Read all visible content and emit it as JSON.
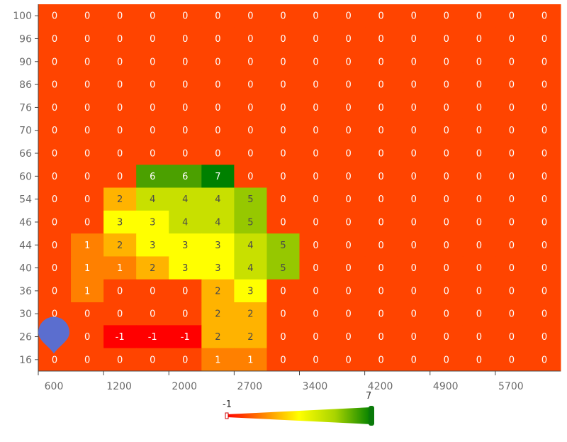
{
  "chart_data": {
    "type": "heatmap",
    "title": "",
    "xlabel": "",
    "ylabel": "",
    "x_tick_labels": [
      "600",
      "1200",
      "2000",
      "2700",
      "3400",
      "4200",
      "4900",
      "5700"
    ],
    "y_categories": [
      "100",
      "96",
      "90",
      "86",
      "76",
      "70",
      "66",
      "60",
      "54",
      "46",
      "44",
      "40",
      "36",
      "30",
      "26",
      "16"
    ],
    "matrix": [
      [
        0,
        0,
        0,
        0,
        0,
        0,
        0,
        0,
        0,
        0,
        0,
        0,
        0,
        0,
        0,
        0
      ],
      [
        0,
        0,
        0,
        0,
        0,
        0,
        0,
        0,
        0,
        0,
        0,
        0,
        0,
        0,
        0,
        0
      ],
      [
        0,
        0,
        0,
        0,
        0,
        0,
        0,
        0,
        0,
        0,
        0,
        0,
        0,
        0,
        0,
        0
      ],
      [
        0,
        0,
        0,
        0,
        0,
        0,
        0,
        0,
        0,
        0,
        0,
        0,
        0,
        0,
        0,
        0
      ],
      [
        0,
        0,
        0,
        0,
        0,
        0,
        0,
        0,
        0,
        0,
        0,
        0,
        0,
        0,
        0,
        0
      ],
      [
        0,
        0,
        0,
        0,
        0,
        0,
        0,
        0,
        0,
        0,
        0,
        0,
        0,
        0,
        0,
        0
      ],
      [
        0,
        0,
        0,
        0,
        0,
        0,
        0,
        0,
        0,
        0,
        0,
        0,
        0,
        0,
        0,
        0
      ],
      [
        0,
        0,
        0,
        6,
        6,
        7,
        0,
        0,
        0,
        0,
        0,
        0,
        0,
        0,
        0,
        0
      ],
      [
        0,
        0,
        2,
        4,
        4,
        4,
        5,
        0,
        0,
        0,
        0,
        0,
        0,
        0,
        0,
        0
      ],
      [
        0,
        0,
        3,
        3,
        4,
        4,
        5,
        0,
        0,
        0,
        0,
        0,
        0,
        0,
        0,
        0
      ],
      [
        0,
        1,
        2,
        3,
        3,
        3,
        4,
        5,
        0,
        0,
        0,
        0,
        0,
        0,
        0,
        0
      ],
      [
        0,
        1,
        1,
        2,
        3,
        3,
        4,
        5,
        0,
        0,
        0,
        0,
        0,
        0,
        0,
        0
      ],
      [
        0,
        1,
        0,
        0,
        0,
        2,
        3,
        0,
        0,
        0,
        0,
        0,
        0,
        0,
        0,
        0
      ],
      [
        0,
        0,
        0,
        0,
        0,
        2,
        2,
        0,
        0,
        0,
        0,
        0,
        0,
        0,
        0,
        0
      ],
      [
        0,
        0,
        -1,
        -1,
        -1,
        2,
        2,
        0,
        0,
        0,
        0,
        0,
        0,
        0,
        0,
        0
      ],
      [
        0,
        0,
        0,
        0,
        0,
        1,
        1,
        0,
        0,
        0,
        0,
        0,
        0,
        0,
        0,
        0
      ]
    ],
    "color_scale": {
      "min": -1,
      "max": 7,
      "min_label": "-1",
      "max_label": "7",
      "colors": {
        "-1": "#ff0000",
        "0": "#ff4400",
        "1": "#ff8000",
        "2": "#ffb300",
        "3": "#ffff00",
        "4": "#c8e000",
        "5": "#96c800",
        "6": "#4ba000",
        "7": "#008000"
      }
    },
    "marker": {
      "icon": "map-pin-icon",
      "color": "#5b6ecf",
      "row": "26",
      "col_index": 0
    },
    "legend": "bottom-center",
    "grid": false
  }
}
